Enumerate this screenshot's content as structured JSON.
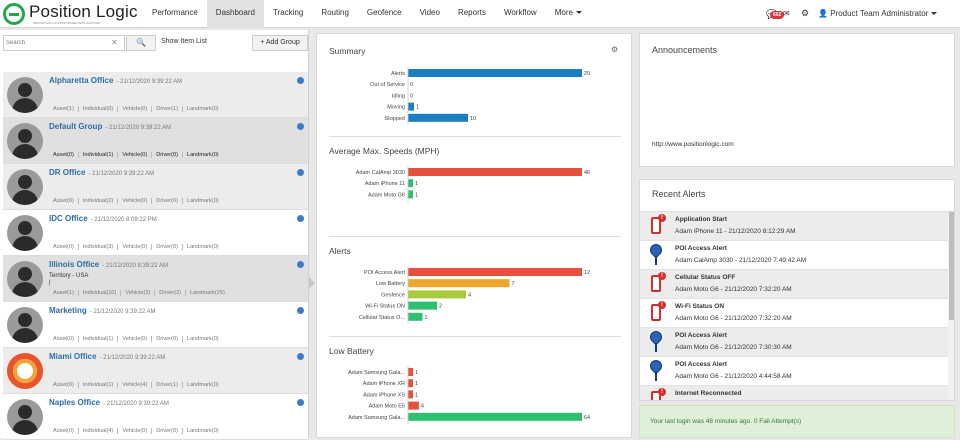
{
  "nav": {
    "logo": "Position Logic",
    "logo_tag": "INNOVATIVE LOCATION BASED APPLICATIONS",
    "items": [
      {
        "label": "Performance"
      },
      {
        "label": "Dashboard",
        "active": true
      },
      {
        "label": "Tracking"
      },
      {
        "label": "Routing"
      },
      {
        "label": "Geofence"
      },
      {
        "label": "Video"
      },
      {
        "label": "Reports"
      },
      {
        "label": "Workflow"
      },
      {
        "label": "More"
      }
    ],
    "notification_count": "602",
    "user": "Product Team Administrator"
  },
  "left": {
    "search_placeholder": "Search",
    "clear": "✕",
    "show_item_list": "Show Item List",
    "add_group": "+ Add Group",
    "groups": [
      {
        "name": "Alpharetta Office",
        "date": "- 21/12/2020 9:39:22 AM",
        "counts": [
          "Asset(1)",
          "Individual(0)",
          "Vehicle(0)",
          "Driver(1)",
          "Landmark(0)"
        ]
      },
      {
        "name": "Default Group",
        "date": "- 21/12/2020 9:39:22 AM",
        "counts": [
          "Asset(0)",
          "Individual(1)",
          "Vehicle(0)",
          "Driver(0)",
          "Landmark(0)"
        ]
      },
      {
        "name": "DR Office",
        "date": "- 21/12/2020 9:39:22 AM",
        "counts": [
          "Asset(0)",
          "Individual(2)",
          "Vehicle(0)",
          "Driver(0)",
          "Landmark(0)"
        ]
      },
      {
        "name": "IDC Office",
        "date": "- 21/12/2020 8:09:22 PM",
        "counts": [
          "Asset(0)",
          "Individual(3)",
          "Vehicle(0)",
          "Driver(0)",
          "Landmark(0)"
        ]
      },
      {
        "name": "Illinois Office",
        "date": "- 21/12/2020 8:39:22 AM",
        "sub": "Territory - USA",
        "counts": [
          "Asset(1)",
          "Individual(10)",
          "Vehicle(2)",
          "Driver(2)",
          "Landmark(25)"
        ]
      },
      {
        "name": "Marketing",
        "date": "- 21/12/2020 9:39:22 AM",
        "counts": [
          "Asset(0)",
          "Individual(1)",
          "Vehicle(0)",
          "Driver(0)",
          "Landmark(0)"
        ]
      },
      {
        "name": "Miami Office",
        "date": "- 21/12/2020 9:39:22 AM",
        "counts": [
          "Asset(0)",
          "Individual(1)",
          "Vehicle(4)",
          "Driver(1)",
          "Landmark(0)"
        ]
      },
      {
        "name": "Naples Office",
        "date": "- 21/12/2020 9:39:22 AM",
        "counts": [
          "Asset(0)",
          "Individual(4)",
          "Vehicle(0)",
          "Driver(0)",
          "Landmark(0)"
        ]
      }
    ]
  },
  "middle": {
    "sections": [
      {
        "title": "Summary"
      },
      {
        "title": "Average Max. Speeds (MPH)"
      },
      {
        "title": "Alerts"
      },
      {
        "title": "Low Battery"
      }
    ]
  },
  "chart_data": [
    {
      "type": "bar",
      "title": "Summary",
      "categories": [
        "Alerts",
        "Out of Service",
        "Idling",
        "Moving",
        "Stopped"
      ],
      "values": [
        29,
        0,
        0,
        1,
        10
      ],
      "colors": [
        "#1a7fc1",
        "#1a7fc1",
        "#1a7fc1",
        "#1a7fc1",
        "#1a7fc1"
      ]
    },
    {
      "type": "bar",
      "title": "Average Max. Speeds (MPH)",
      "categories": [
        "Adam CalAmp 3030",
        "Adam iPhone 11",
        "Adam Moto G6"
      ],
      "values": [
        46,
        1,
        1
      ],
      "colors": [
        "#e8503e",
        "#2fbf71",
        "#2fbf71"
      ]
    },
    {
      "type": "bar",
      "title": "Alerts",
      "categories": [
        "POI Access Alert",
        "Low Battery",
        "Geofence",
        "Wi-Fi Status ON",
        "Cellular Status O..."
      ],
      "values": [
        12,
        7,
        4,
        2,
        1
      ],
      "colors": [
        "#e8503e",
        "#f0a52e",
        "#a8c93a",
        "#2fbf71",
        "#2fbf71"
      ]
    },
    {
      "type": "bar",
      "title": "Low Battery",
      "categories": [
        "Adam Samsung Gala...",
        "Adam iPhone XR",
        "Adam iPhone XS",
        "Adam Moto E5",
        "Adam Samsung Gala..."
      ],
      "values": [
        1,
        1,
        1,
        4,
        64
      ],
      "colors": [
        "#e8503e",
        "#e8503e",
        "#e8503e",
        "#e8503e",
        "#2fbf71"
      ]
    }
  ],
  "right": {
    "announcements_title": "Announcements",
    "announcement_url": "http://www.positionlogic.com",
    "recent_title": "Recent Alerts",
    "alerts": [
      {
        "icon": "phone",
        "title": "Application Start",
        "detail": "Adam iPhone 11 - 21/12/2020 8:12:29 AM"
      },
      {
        "icon": "pin",
        "title": "POI Access Alert",
        "detail": "Adam CalAmp 3030 - 21/12/2020 7:49:42 AM"
      },
      {
        "icon": "phone",
        "title": "Cellular Status OFF",
        "detail": "Adam Moto G6 - 21/12/2020 7:32:20 AM"
      },
      {
        "icon": "phone",
        "title": "Wi-Fi Status ON",
        "detail": "Adam Moto G6 - 21/12/2020 7:32:20 AM"
      },
      {
        "icon": "pin",
        "title": "POI Access Alert",
        "detail": "Adam Moto G6 - 21/12/2020 7:30:30 AM"
      },
      {
        "icon": "pin",
        "title": "POI Access Alert",
        "detail": "Adam Moto G6 - 21/12/2020 4:44:58 AM"
      },
      {
        "icon": "phone",
        "title": "Internet Reconnected",
        "detail": ""
      }
    ],
    "last_login": "Your last login was 48 minutes ago. 0 Fail Attempt(s)"
  }
}
